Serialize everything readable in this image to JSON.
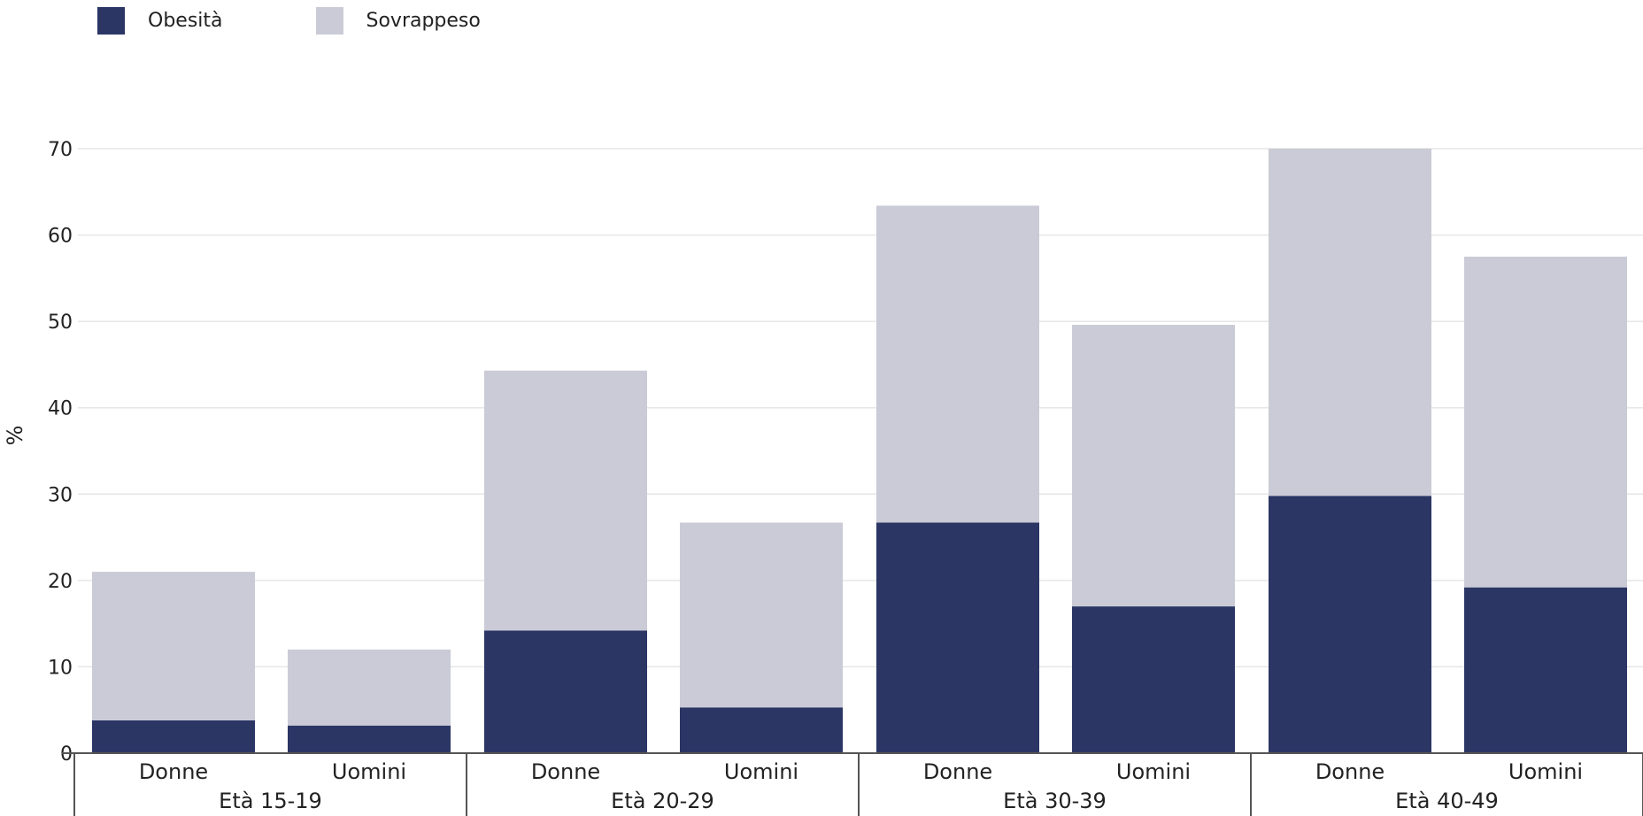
{
  "chart_data": {
    "type": "bar",
    "stacked": true,
    "ylabel": "%",
    "ylim": [
      0,
      70
    ],
    "yticks": [
      0,
      10,
      20,
      30,
      40,
      50,
      60,
      70
    ],
    "grid": true,
    "legend_position": "top-left",
    "groups": [
      "Età 15-19",
      "Età 20-29",
      "Età 30-39",
      "Età 40-49"
    ],
    "subcategories": [
      "Donne",
      "Uomini"
    ],
    "categories": [
      "Età 15-19 Donne",
      "Età 15-19 Uomini",
      "Età 20-29 Donne",
      "Età 20-29 Uomini",
      "Età 30-39 Donne",
      "Età 30-39 Uomini",
      "Età 40-49 Donne",
      "Età 40-49 Uomini"
    ],
    "series": [
      {
        "name": "Obesità",
        "color": "#2b3665",
        "values": [
          3.8,
          3.2,
          14.2,
          5.3,
          26.7,
          17.0,
          29.8,
          19.2
        ]
      },
      {
        "name": "Sovrappeso",
        "color": "#cacbd6",
        "values": [
          17.2,
          8.8,
          30.1,
          21.4,
          36.7,
          32.6,
          40.2,
          38.3
        ]
      }
    ]
  },
  "legend": {
    "items": [
      {
        "label": "Obesità",
        "color": "#2b3665"
      },
      {
        "label": "Sovrappeso",
        "color": "#cacbd6"
      }
    ]
  }
}
